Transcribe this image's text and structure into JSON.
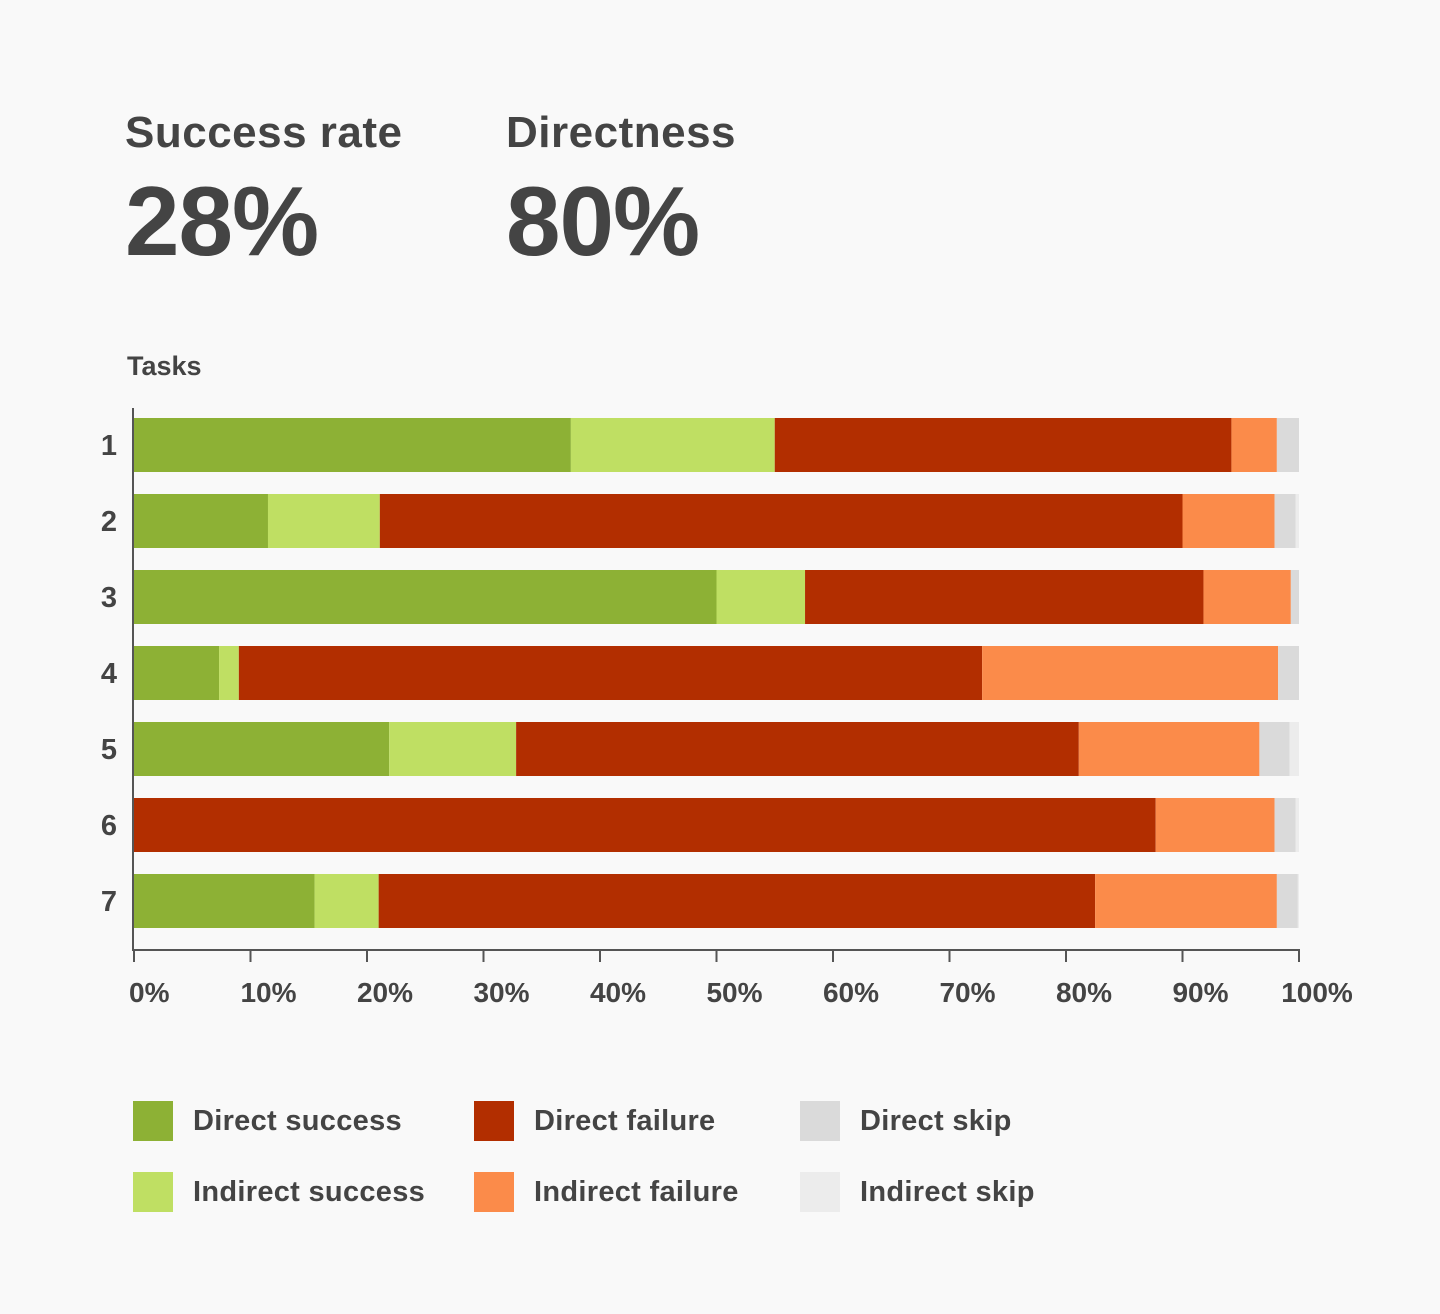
{
  "metrics": {
    "success_label": "Success rate",
    "success_value": "28%",
    "directness_label": "Directness",
    "directness_value": "80%"
  },
  "colors": {
    "direct_success": "#8db135",
    "indirect_success": "#bfdf63",
    "direct_failure": "#b22e00",
    "indirect_failure": "#fb8b4a",
    "direct_skip": "#dadada",
    "indirect_skip": "#ececec",
    "axis": "#555555",
    "text": "#444444"
  },
  "chart_data": {
    "type": "bar",
    "orientation": "horizontal",
    "stacked": true,
    "ylabel": "Tasks",
    "categories": [
      "1",
      "2",
      "3",
      "4",
      "5",
      "6",
      "7"
    ],
    "xlim": [
      0,
      100
    ],
    "xticks": [
      "0%",
      "10%",
      "20%",
      "30%",
      "40%",
      "50%",
      "60%",
      "70%",
      "80%",
      "90%",
      "100%"
    ],
    "series": [
      {
        "name": "Direct success",
        "color": "#8db135",
        "values": [
          37.5,
          11.5,
          50,
          7.3,
          21.9,
          0,
          15.5
        ]
      },
      {
        "name": "Indirect success",
        "color": "#bfdf63",
        "values": [
          17.5,
          9.6,
          7.6,
          1.7,
          10.9,
          0,
          5.5
        ]
      },
      {
        "name": "Direct failure",
        "color": "#b22e00",
        "values": [
          39.2,
          68.9,
          34.2,
          63.8,
          48.3,
          87.7,
          61.5
        ]
      },
      {
        "name": "Indirect failure",
        "color": "#fb8b4a",
        "values": [
          3.9,
          7.9,
          7.5,
          25.4,
          15.5,
          10.2,
          15.6
        ]
      },
      {
        "name": "Direct skip",
        "color": "#dadada",
        "values": [
          1.9,
          1.8,
          0.7,
          1.8,
          2.6,
          1.8,
          1.8
        ]
      },
      {
        "name": "Indirect skip",
        "color": "#ececec",
        "values": [
          0,
          0.3,
          0,
          0,
          0.8,
          0.3,
          0.1
        ]
      }
    ],
    "grid": false,
    "legend_position": "bottom"
  },
  "legend": [
    {
      "label": "Direct success",
      "color": "#8db135"
    },
    {
      "label": "Direct failure",
      "color": "#b22e00"
    },
    {
      "label": "Direct skip",
      "color": "#dadada"
    },
    {
      "label": "Indirect success",
      "color": "#bfdf63"
    },
    {
      "label": "Indirect failure",
      "color": "#fb8b4a"
    },
    {
      "label": "Indirect skip",
      "color": "#ececec"
    }
  ]
}
